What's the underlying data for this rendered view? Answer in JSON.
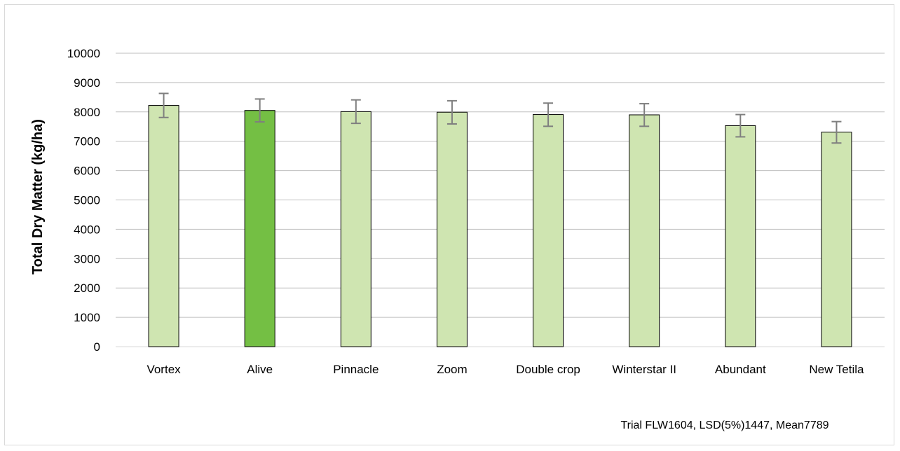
{
  "chart_data": {
    "type": "bar",
    "categories": [
      "Vortex",
      "Alive",
      "Pinnacle",
      "Zoom",
      "Double crop",
      "Winterstar II",
      "Abundant",
      "New Tetila"
    ],
    "values": [
      8220,
      8050,
      8010,
      7990,
      7910,
      7900,
      7530,
      7310
    ],
    "error_low": [
      7810,
      7660,
      7610,
      7590,
      7510,
      7510,
      7150,
      6940
    ],
    "error_high": [
      8630,
      8440,
      8410,
      8380,
      8300,
      8280,
      7910,
      7670
    ],
    "highlight_index": 1,
    "colors": {
      "bar": "#cfe5b1",
      "highlight": "#74bf44",
      "bar_stroke": "#000000",
      "error": "#7f7f7f",
      "grid": "#bfbfbf"
    },
    "title": "",
    "xlabel": "",
    "ylabel": "Total Dry Matter (kg/ha)",
    "ylim": [
      0,
      10000
    ],
    "yticks": [
      "0",
      "1000",
      "2000",
      "3000",
      "4000",
      "5000",
      "6000",
      "7000",
      "8000",
      "9000",
      "10000"
    ],
    "grid": true,
    "note": "Trial FLW1604, LSD(5%)1447, Mean7789"
  }
}
